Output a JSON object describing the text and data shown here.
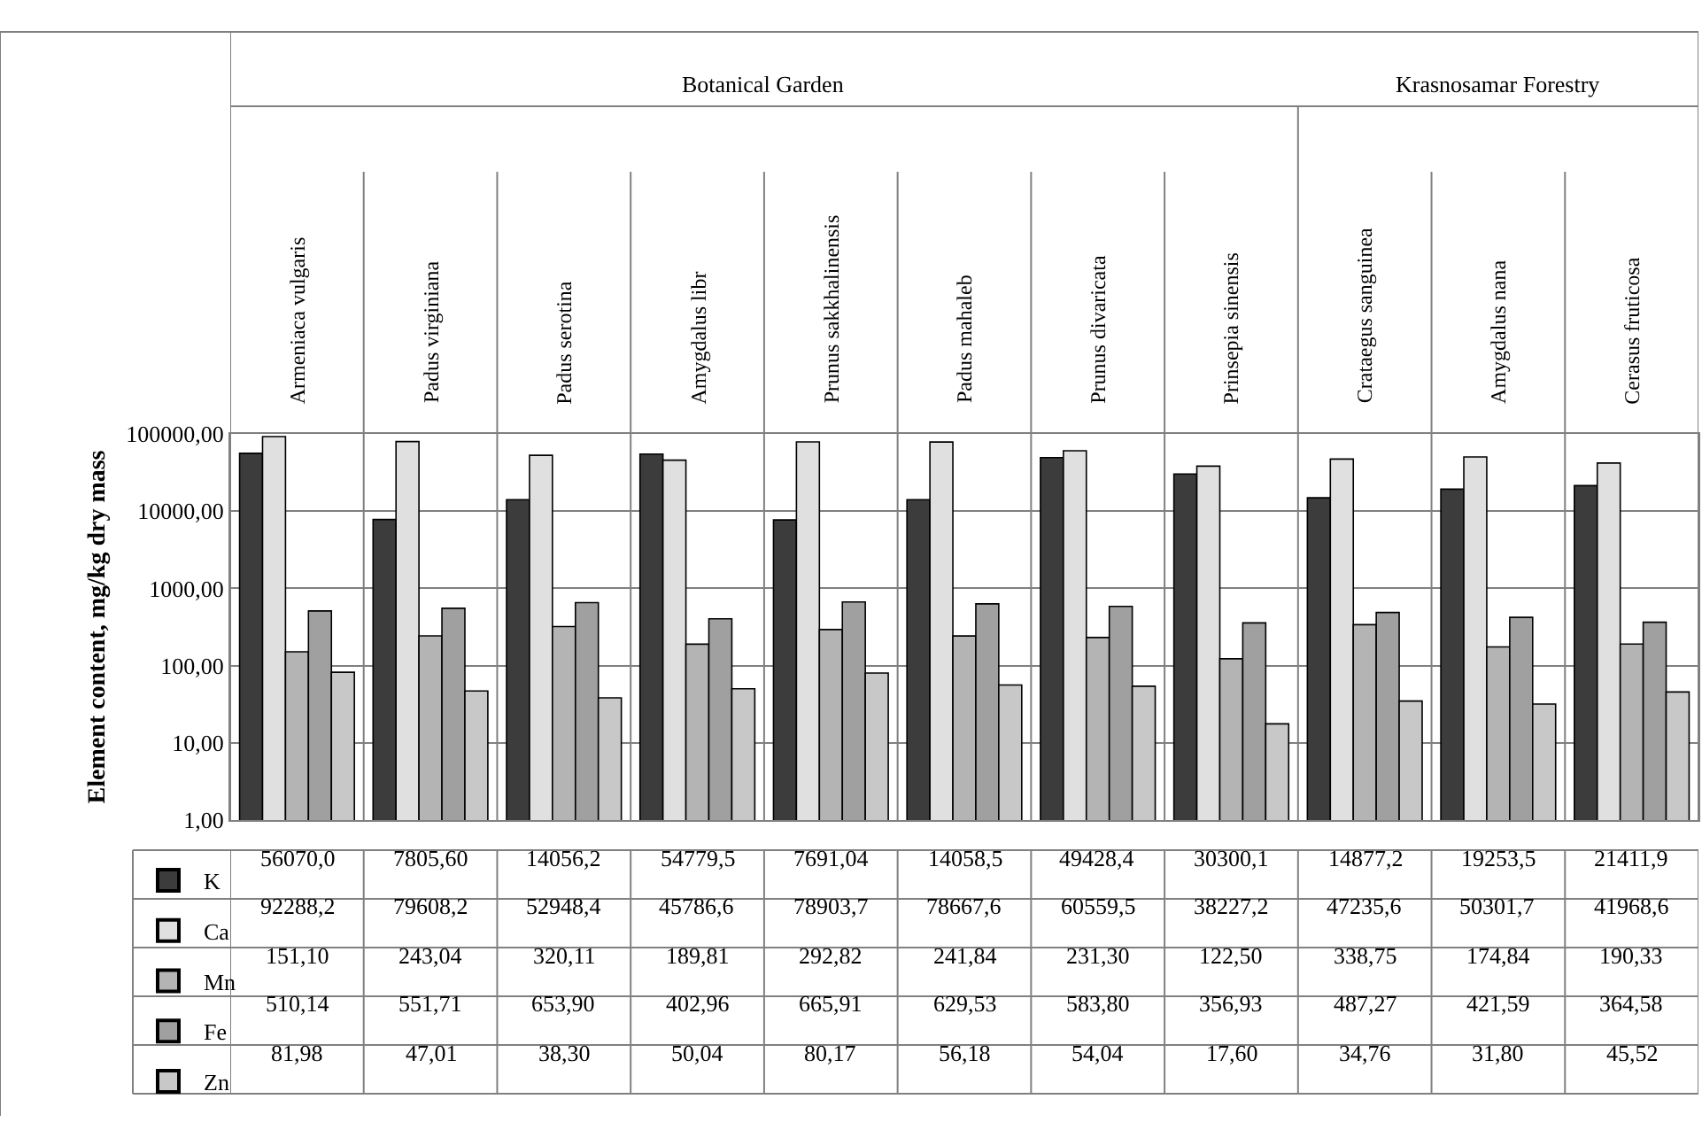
{
  "chart_data": {
    "type": "bar",
    "ylabel": "Element content, mg/kg dry mass",
    "annotations": [
      "Botanical Garden",
      "Krasnosamar Forestry"
    ],
    "categories": [
      "Armeniaca vulgaris",
      "Padus virginiana",
      "Padus serotina",
      "Amygdalus libr",
      "Prunus sakkhalinensis",
      "Padus mahaleb",
      "Prunus divaricata",
      "Prinsepia sinensis",
      "Crataegus sanguinea",
      "Amygdalus nana",
      "Cerasus fruticosa"
    ],
    "series": [
      {
        "name": "K",
        "color": "#3c3c3c",
        "values": [
          56070.0,
          7805.6,
          14056.2,
          54779.5,
          7691.04,
          14058.5,
          49428.4,
          30300.1,
          14877.2,
          19253.5,
          21411.9
        ],
        "value_labels": [
          "56070,0",
          "7805,60",
          "14056,2",
          "54779,5",
          "7691,04",
          "14058,5",
          "49428,4",
          "30300,1",
          "14877,2",
          "19253,5",
          "21411,9"
        ]
      },
      {
        "name": "Ca",
        "color": "#e0e0e0",
        "values": [
          92288.2,
          79608.2,
          52948.4,
          45786.6,
          78903.7,
          78667.6,
          60559.5,
          38227.2,
          47235.6,
          50301.7,
          41968.6
        ],
        "value_labels": [
          "92288,2",
          "79608,2",
          "52948,4",
          "45786,6",
          "78903,7",
          "78667,6",
          "60559,5",
          "38227,2",
          "47235,6",
          "50301,7",
          "41968,6"
        ]
      },
      {
        "name": "Mn",
        "color": "#b4b4b4",
        "values": [
          151.1,
          243.04,
          320.11,
          189.81,
          292.82,
          241.84,
          231.3,
          122.5,
          338.75,
          174.84,
          190.33
        ],
        "value_labels": [
          "151,10",
          "243,04",
          "320,11",
          "189,81",
          "292,82",
          "241,84",
          "231,30",
          "122,50",
          "338,75",
          "174,84",
          "190,33"
        ]
      },
      {
        "name": "Fe",
        "color": "#a0a0a0",
        "values": [
          510.14,
          551.71,
          653.9,
          402.96,
          665.91,
          629.53,
          583.8,
          356.93,
          487.27,
          421.59,
          364.58
        ],
        "value_labels": [
          "510,14",
          "551,71",
          "653,90",
          "402,96",
          "665,91",
          "629,53",
          "583,80",
          "356,93",
          "487,27",
          "421,59",
          "364,58"
        ]
      },
      {
        "name": "Zn",
        "color": "#c8c8c8",
        "values": [
          81.98,
          47.01,
          38.3,
          50.04,
          80.17,
          56.18,
          54.04,
          17.6,
          34.76,
          31.8,
          45.52
        ],
        "value_labels": [
          "81,98",
          "47,01",
          "38,30",
          "50,04",
          "80,17",
          "56,18",
          "54,04",
          "17,60",
          "34,76",
          "31,80",
          "45,52"
        ]
      }
    ],
    "log": true,
    "ylim": [
      1,
      100000
    ],
    "yticks": [
      {
        "value": 1,
        "label": "1,00"
      },
      {
        "value": 10,
        "label": "10,00"
      },
      {
        "value": 100,
        "label": "100,00"
      },
      {
        "value": 1000,
        "label": "1000,00"
      },
      {
        "value": 10000,
        "label": "10000,00"
      },
      {
        "value": 100000,
        "label": "100000,00"
      }
    ],
    "grid": "y",
    "legend": "bottom left"
  }
}
